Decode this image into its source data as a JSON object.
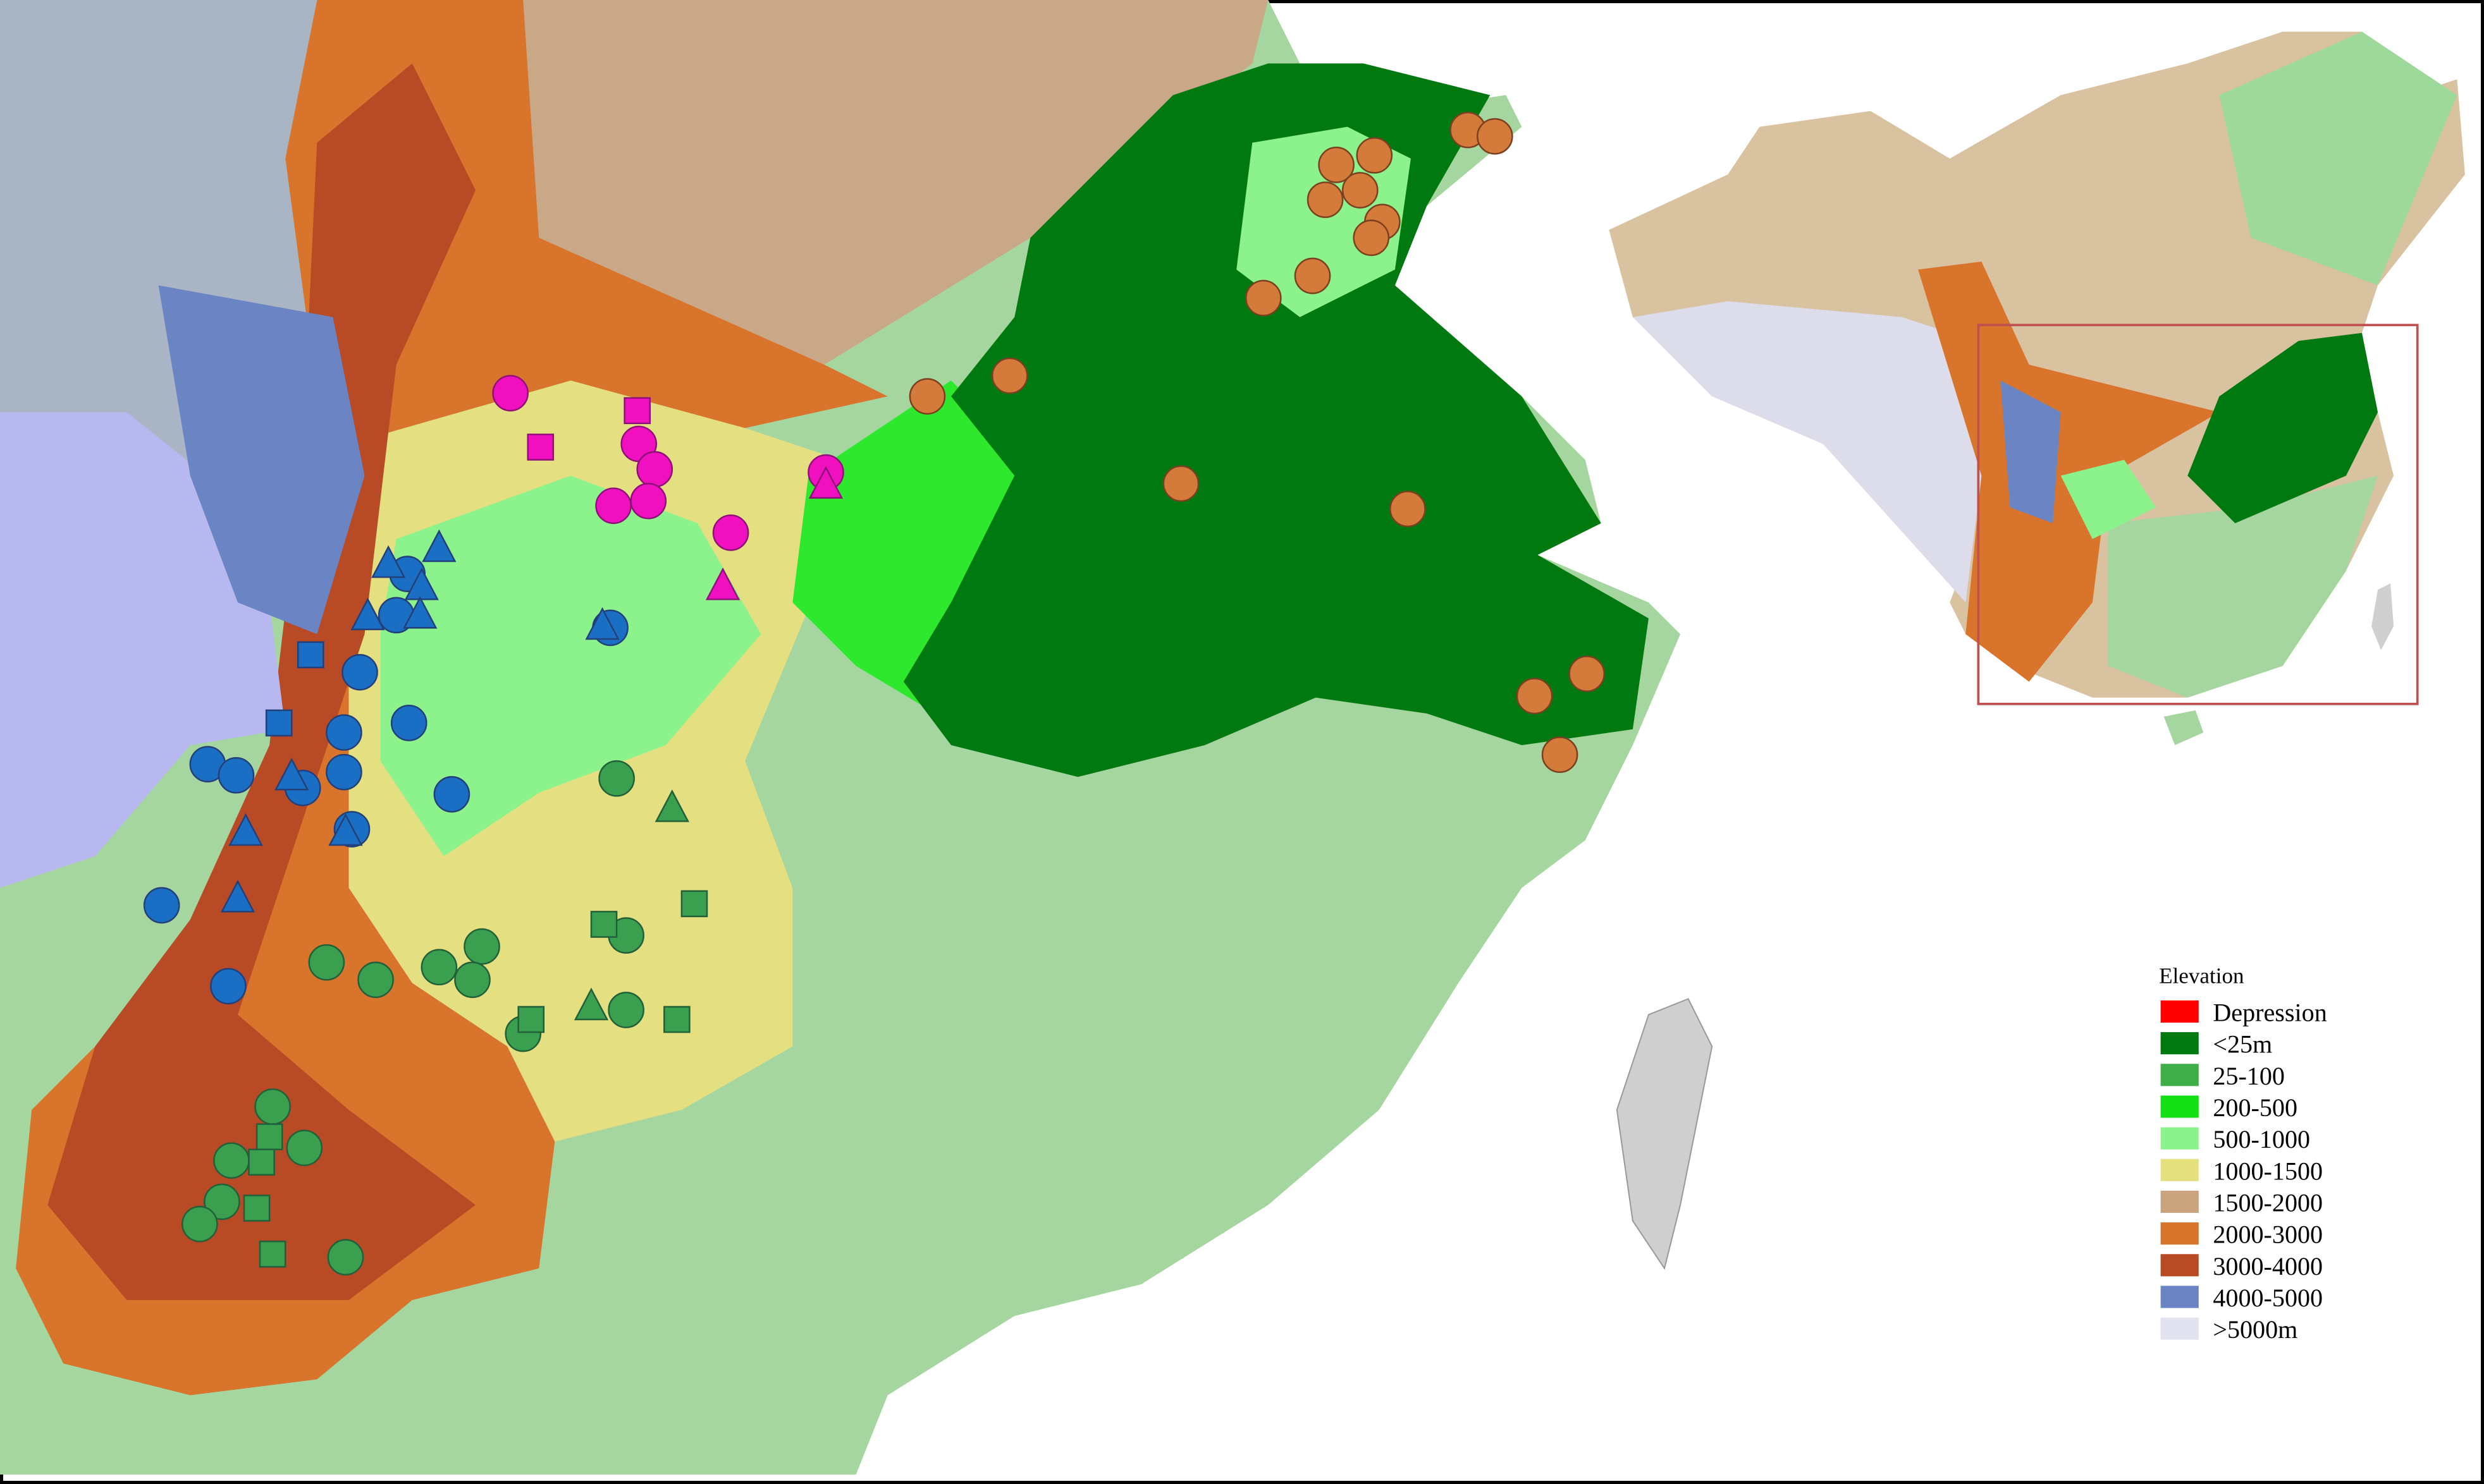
{
  "legend": {
    "title": "Elevation",
    "items": [
      {
        "label": "Depression",
        "color": "#ff0000"
      },
      {
        "label": "<25m",
        "color": "#007a10"
      },
      {
        "label": "25-100",
        "color": "#3fae48"
      },
      {
        "label": "200-500",
        "color": "#12e012"
      },
      {
        "label": "500-1000",
        "color": "#8cf28c"
      },
      {
        "label": "1000-1500",
        "color": "#e4e07e"
      },
      {
        "label": "1500-2000",
        "color": "#c9a47e"
      },
      {
        "label": "2000-3000",
        "color": "#d8742c"
      },
      {
        "label": "3000-4000",
        "color": "#b84a26"
      },
      {
        "label": "4000-5000",
        "color": "#6a84c4"
      },
      {
        "label": ">5000m",
        "color": "#e2e2f0"
      }
    ]
  }
}
